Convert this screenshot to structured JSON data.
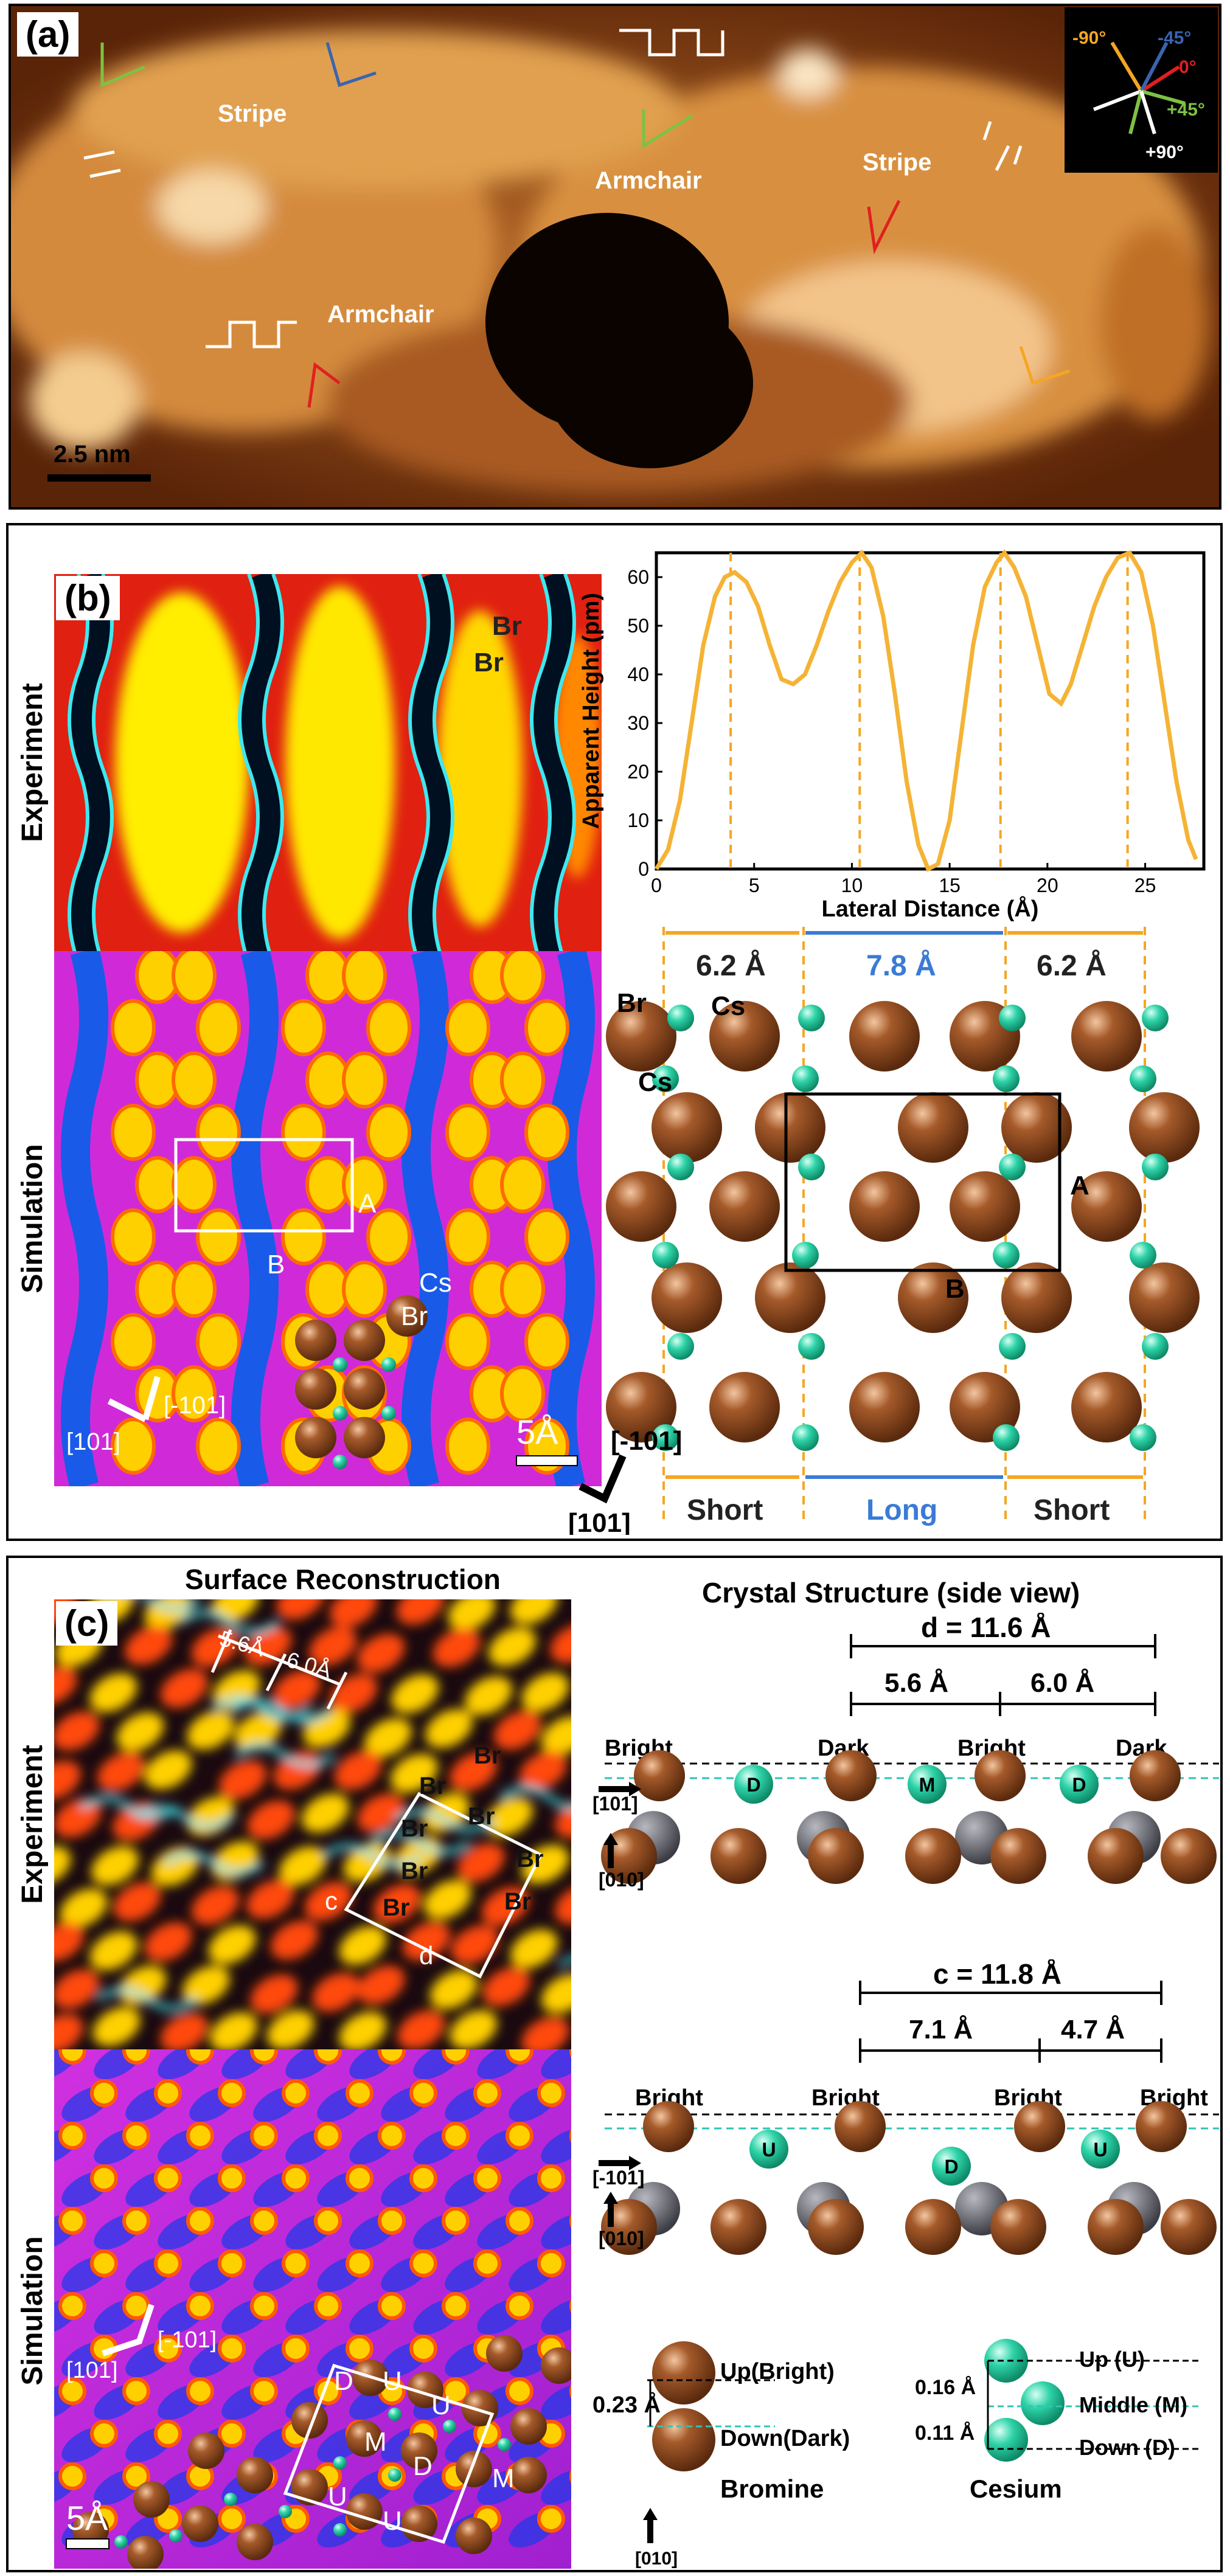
{
  "panel_a": {
    "label": "(a)",
    "annotations": {
      "stripe_left": "Stripe",
      "stripe_right": "Stripe",
      "armchair_top": "Armchair",
      "armchair_bottom": "Armchair"
    },
    "scalebar": "2.5 nm",
    "legend": {
      "m90": "-90°",
      "m45": "-45°",
      "zero": "0°",
      "p45": "+45°",
      "p90": "+90°"
    },
    "colors": {
      "m90": "#f5a623",
      "m45": "#3a64b0",
      "zero": "#e02020",
      "p45": "#7dc242",
      "p90": "#ffffff"
    }
  },
  "panel_b": {
    "label": "(b)",
    "rows": {
      "experiment": "Experiment",
      "simulation": "Simulation"
    },
    "atom_labels": {
      "br1": "Br",
      "br2": "Br",
      "cs": "Cs",
      "br3": "Br",
      "a": "A",
      "b": "B"
    },
    "axis_labels": {
      "dir1": "[101]",
      "dir2": "[-101]"
    },
    "scalebar": "5Å",
    "model": {
      "br": "Br",
      "cs1": "Cs",
      "cs2": "Cs",
      "a": "A",
      "b": "B",
      "dir1": "[-101]",
      "dir2": "[101]",
      "spacing1": "6.2 Å",
      "spacing2": "7.8 Å",
      "spacing3": "6.2 Å",
      "short1": "Short",
      "long": "Long",
      "short2": "Short"
    },
    "chart_data": {
      "type": "line",
      "xlabel": "Lateral Distance (Å)",
      "ylabel": "Apparent Height (pm)",
      "xlim": [
        0,
        28
      ],
      "ylim": [
        0,
        65
      ],
      "xticks": [
        0,
        5,
        10,
        15,
        20,
        25
      ],
      "yticks": [
        0,
        10,
        20,
        30,
        40,
        50,
        60
      ],
      "series": [
        {
          "x": [
            0,
            0.6,
            1.2,
            1.8,
            2.4,
            3.0,
            3.5,
            4.0,
            4.6,
            5.2,
            5.8,
            6.4,
            7.0,
            7.6,
            8.2,
            8.8,
            9.4,
            10.0,
            10.5,
            11.0,
            11.6,
            12.2,
            12.8,
            13.4,
            13.9,
            14.4,
            15.0,
            15.6,
            16.2,
            16.8,
            17.4,
            17.8,
            18.3,
            18.9,
            19.5,
            20.1,
            20.7,
            21.2,
            21.8,
            22.4,
            23.0,
            23.6,
            24.2,
            24.8,
            25.4,
            26.0,
            26.6,
            27.2,
            27.6
          ],
          "y": [
            0,
            4,
            14,
            30,
            46,
            56,
            60,
            61,
            59,
            54,
            46,
            39,
            38,
            40,
            46,
            53,
            59,
            63,
            65,
            62,
            52,
            36,
            18,
            5,
            0,
            1,
            10,
            28,
            46,
            58,
            63,
            65,
            62,
            56,
            46,
            36,
            34,
            38,
            46,
            54,
            60,
            64,
            65,
            61,
            50,
            34,
            18,
            6,
            2
          ]
        }
      ],
      "guides_x": [
        3.8,
        10.4,
        17.6,
        24.1
      ]
    }
  },
  "panel_c": {
    "label": "(c)",
    "title_left": "Surface Reconstruction",
    "title_right": "Crystal Structure (side view)",
    "rows": {
      "experiment": "Experiment",
      "simulation": "Simulation"
    },
    "exp_labels": {
      "s1": "5.6Å",
      "s2": "6.0Å",
      "br": [
        "Br",
        "Br",
        "Br",
        "Br",
        "Br",
        "Br",
        "Br",
        "Br"
      ],
      "c": "c",
      "d": "d"
    },
    "sim_labels": {
      "dir1": "[101]",
      "dir2": "[-101]",
      "u": [
        "U",
        "U",
        "U",
        "U"
      ],
      "d": [
        "D",
        "D"
      ],
      "m": [
        "M",
        "M"
      ],
      "scalebar": "5Å"
    },
    "side1": {
      "d": "d = 11.6 Å",
      "s1": "5.6 Å",
      "s2": "6.0 Å",
      "bright1": "Bright",
      "dark1": "Dark",
      "bright2": "Bright",
      "dark2": "Dark",
      "dir_h": "[101]",
      "dir_v": "[010]",
      "atoms": [
        "D",
        "M",
        "D"
      ]
    },
    "side2": {
      "c": "c = 11.8 Å",
      "s1": "7.1 Å",
      "s2": "4.7 Å",
      "b": [
        "Bright",
        "Bright",
        "Bright",
        "Bright"
      ],
      "dir_h": "[-101]",
      "dir_v": "[010]",
      "atoms": [
        "U",
        "D",
        "U"
      ]
    },
    "legend": {
      "up": "Up(Bright)",
      "down": "Down(Dark)",
      "h": "0.23 Å",
      "bromine": "Bromine",
      "dir": "[010]",
      "cs_up": "Up (U)",
      "cs_mid": "Middle (M)",
      "cs_down": "Down (D)",
      "h1": "0.16 Å",
      "h2": "0.11 Å",
      "cesium": "Cesium"
    }
  }
}
